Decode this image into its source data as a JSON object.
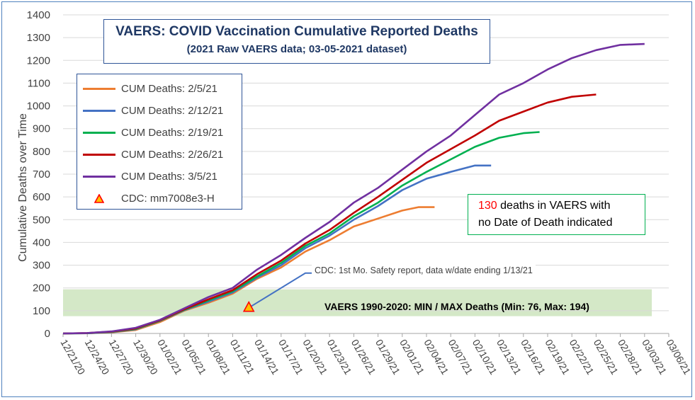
{
  "chart_data": {
    "type": "line",
    "title": "VAERS:  COVID Vaccination Cumulative Reported Deaths",
    "subtitle": "(2021 Raw VAERS data; 03-05-2021 dataset)",
    "ylabel": "Cumulative  Deaths over Time",
    "xlabel": "",
    "ylim": [
      0,
      1400
    ],
    "yticks": [
      "0",
      "100",
      "200",
      "300",
      "400",
      "500",
      "600",
      "700",
      "800",
      "900",
      "1000",
      "1100",
      "1200",
      "1300",
      "1400"
    ],
    "x_start": "2020-12-21",
    "x_end": "2021-03-06",
    "xticks": [
      "12/21/20",
      "12/24/20",
      "12/27/20",
      "12/30/20",
      "01/02/21",
      "01/05/21",
      "01/08/21",
      "01/11/21",
      "01/14/21",
      "01/17/21",
      "01/20/21",
      "01/23/21",
      "01/26/21",
      "01/29/21",
      "02/01/21",
      "02/04/21",
      "02/07/21",
      "02/10/21",
      "02/13/21",
      "02/16/21",
      "02/19/21",
      "02/22/21",
      "02/25/21",
      "02/28/21",
      "03/03/21",
      "03/06/21"
    ],
    "grid": "horizontal",
    "band": {
      "min": 76,
      "max": 194,
      "label": "VAERS 1990-2020: MIN / MAX Deaths (Min: 76, Max: 194)",
      "color": "#c6e0b4"
    },
    "series": [
      {
        "name": "CUM Deaths: 2/5/21",
        "color": "#ed7d31",
        "points": [
          [
            "2020-12-21",
            0
          ],
          [
            "2020-12-24",
            1
          ],
          [
            "2020-12-27",
            5
          ],
          [
            "2020-12-30",
            15
          ],
          [
            "2021-01-02",
            50
          ],
          [
            "2021-01-05",
            100
          ],
          [
            "2021-01-08",
            135
          ],
          [
            "2021-01-11",
            175
          ],
          [
            "2021-01-14",
            240
          ],
          [
            "2021-01-17",
            290
          ],
          [
            "2021-01-20",
            360
          ],
          [
            "2021-01-23",
            410
          ],
          [
            "2021-01-26",
            470
          ],
          [
            "2021-01-29",
            505
          ],
          [
            "2021-02-01",
            540
          ],
          [
            "2021-02-03",
            555
          ],
          [
            "2021-02-05",
            555
          ]
        ]
      },
      {
        "name": "CUM Deaths: 2/12/21",
        "color": "#4472c4",
        "points": [
          [
            "2020-12-21",
            0
          ],
          [
            "2020-12-24",
            1
          ],
          [
            "2020-12-27",
            6
          ],
          [
            "2020-12-30",
            18
          ],
          [
            "2021-01-02",
            55
          ],
          [
            "2021-01-05",
            102
          ],
          [
            "2021-01-08",
            140
          ],
          [
            "2021-01-11",
            180
          ],
          [
            "2021-01-14",
            245
          ],
          [
            "2021-01-17",
            300
          ],
          [
            "2021-01-20",
            375
          ],
          [
            "2021-01-23",
            430
          ],
          [
            "2021-01-26",
            500
          ],
          [
            "2021-01-29",
            560
          ],
          [
            "2021-02-01",
            630
          ],
          [
            "2021-02-04",
            680
          ],
          [
            "2021-02-07",
            710
          ],
          [
            "2021-02-10",
            738
          ],
          [
            "2021-02-12",
            738
          ]
        ]
      },
      {
        "name": "CUM Deaths: 2/19/21",
        "color": "#00b050",
        "points": [
          [
            "2020-12-21",
            0
          ],
          [
            "2020-12-24",
            1
          ],
          [
            "2020-12-27",
            7
          ],
          [
            "2020-12-30",
            20
          ],
          [
            "2021-01-02",
            56
          ],
          [
            "2021-01-05",
            104
          ],
          [
            "2021-01-08",
            145
          ],
          [
            "2021-01-11",
            185
          ],
          [
            "2021-01-14",
            250
          ],
          [
            "2021-01-17",
            310
          ],
          [
            "2021-01-20",
            385
          ],
          [
            "2021-01-23",
            440
          ],
          [
            "2021-01-26",
            515
          ],
          [
            "2021-01-29",
            575
          ],
          [
            "2021-02-01",
            650
          ],
          [
            "2021-02-04",
            710
          ],
          [
            "2021-02-07",
            765
          ],
          [
            "2021-02-10",
            820
          ],
          [
            "2021-02-13",
            860
          ],
          [
            "2021-02-16",
            880
          ],
          [
            "2021-02-18",
            885
          ]
        ]
      },
      {
        "name": "CUM Deaths: 2/26/21",
        "color": "#c00000",
        "points": [
          [
            "2020-12-21",
            0
          ],
          [
            "2020-12-24",
            2
          ],
          [
            "2020-12-27",
            8
          ],
          [
            "2020-12-30",
            22
          ],
          [
            "2021-01-02",
            58
          ],
          [
            "2021-01-05",
            106
          ],
          [
            "2021-01-08",
            150
          ],
          [
            "2021-01-11",
            190
          ],
          [
            "2021-01-14",
            260
          ],
          [
            "2021-01-17",
            320
          ],
          [
            "2021-01-20",
            395
          ],
          [
            "2021-01-23",
            455
          ],
          [
            "2021-01-26",
            530
          ],
          [
            "2021-01-29",
            600
          ],
          [
            "2021-02-01",
            675
          ],
          [
            "2021-02-04",
            750
          ],
          [
            "2021-02-07",
            810
          ],
          [
            "2021-02-10",
            870
          ],
          [
            "2021-02-13",
            935
          ],
          [
            "2021-02-16",
            975
          ],
          [
            "2021-02-19",
            1015
          ],
          [
            "2021-02-22",
            1040
          ],
          [
            "2021-02-25",
            1050
          ]
        ]
      },
      {
        "name": "CUM Deaths: 3/5/21",
        "color": "#7030a0",
        "points": [
          [
            "2020-12-21",
            0
          ],
          [
            "2020-12-24",
            2
          ],
          [
            "2020-12-27",
            9
          ],
          [
            "2020-12-30",
            25
          ],
          [
            "2021-01-02",
            60
          ],
          [
            "2021-01-05",
            110
          ],
          [
            "2021-01-08",
            160
          ],
          [
            "2021-01-11",
            200
          ],
          [
            "2021-01-14",
            280
          ],
          [
            "2021-01-17",
            345
          ],
          [
            "2021-01-20",
            420
          ],
          [
            "2021-01-23",
            490
          ],
          [
            "2021-01-26",
            575
          ],
          [
            "2021-01-29",
            640
          ],
          [
            "2021-02-01",
            720
          ],
          [
            "2021-02-04",
            800
          ],
          [
            "2021-02-07",
            870
          ],
          [
            "2021-02-10",
            960
          ],
          [
            "2021-02-13",
            1050
          ],
          [
            "2021-02-16",
            1100
          ],
          [
            "2021-02-19",
            1160
          ],
          [
            "2021-02-22",
            1210
          ],
          [
            "2021-02-25",
            1245
          ],
          [
            "2021-02-28",
            1268
          ],
          [
            "2021-03-03",
            1272
          ]
        ]
      }
    ],
    "cdc_marker": {
      "name": "CDC: mm7008e3-H",
      "date": "2021-01-13",
      "value": 113,
      "fill": "#ffc000",
      "stroke": "#ff0000"
    },
    "cdc_line": {
      "points": [
        [
          "2021-01-13",
          113
        ],
        [
          "2021-01-20",
          265
        ],
        [
          "2021-01-21",
          265
        ]
      ],
      "color": "#4472c4"
    }
  },
  "title": {
    "line1": "VAERS:  COVID Vaccination Cumulative Reported Deaths",
    "line2": "(2021 Raw VAERS data; 03-05-2021 dataset)"
  },
  "legend": {
    "items": [
      {
        "label": "CUM Deaths: 2/5/21",
        "color": "#ed7d31"
      },
      {
        "label": "CUM Deaths: 2/12/21",
        "color": "#4472c4"
      },
      {
        "label": "CUM Deaths: 2/19/21",
        "color": "#00b050"
      },
      {
        "label": "CUM Deaths: 2/26/21",
        "color": "#c00000"
      },
      {
        "label": "CUM Deaths: 3/5/21",
        "color": "#7030a0"
      },
      {
        "label": "CDC: mm7008e3-H",
        "color": "#ffc000"
      }
    ]
  },
  "annotations": {
    "note_count": "130",
    "note_rest": " deaths in VAERS with",
    "note_line2": "no Date of Death indicated",
    "cdc_note": "CDC: 1st Mo. Safety report, data w/date ending 1/13/21",
    "band_label": "VAERS 1990-2020: MIN / MAX Deaths (Min: 76, Max: 194)"
  }
}
